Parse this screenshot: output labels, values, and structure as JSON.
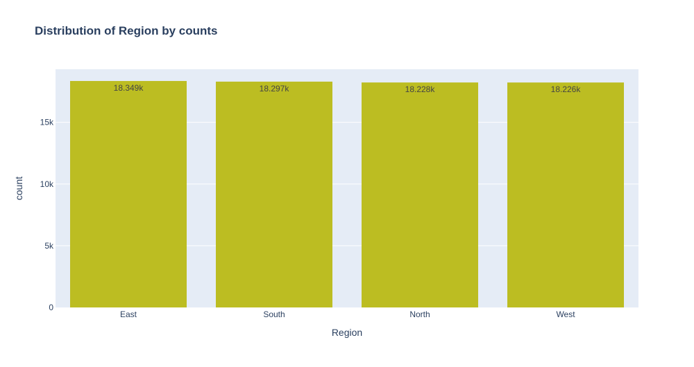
{
  "colors": {
    "plot_bg": "#e5ecf6",
    "grid": "#ffffff",
    "bar": "#bcbd22",
    "text": "#2a3f5f",
    "bar_text": "#444444"
  },
  "chart_data": {
    "type": "bar",
    "title": "Distribution of Region by counts",
    "xlabel": "Region",
    "ylabel": "count",
    "categories": [
      "East",
      "South",
      "North",
      "West"
    ],
    "values": [
      18349,
      18297,
      18228,
      18226
    ],
    "value_labels": [
      "18.349k",
      "18.297k",
      "18.228k",
      "18.226k"
    ],
    "ylim": [
      0,
      19300
    ],
    "yticks": [
      0,
      5000,
      10000,
      15000
    ],
    "ytick_labels": [
      "0",
      "5k",
      "10k",
      "15k"
    ],
    "grid": true,
    "legend": false
  }
}
